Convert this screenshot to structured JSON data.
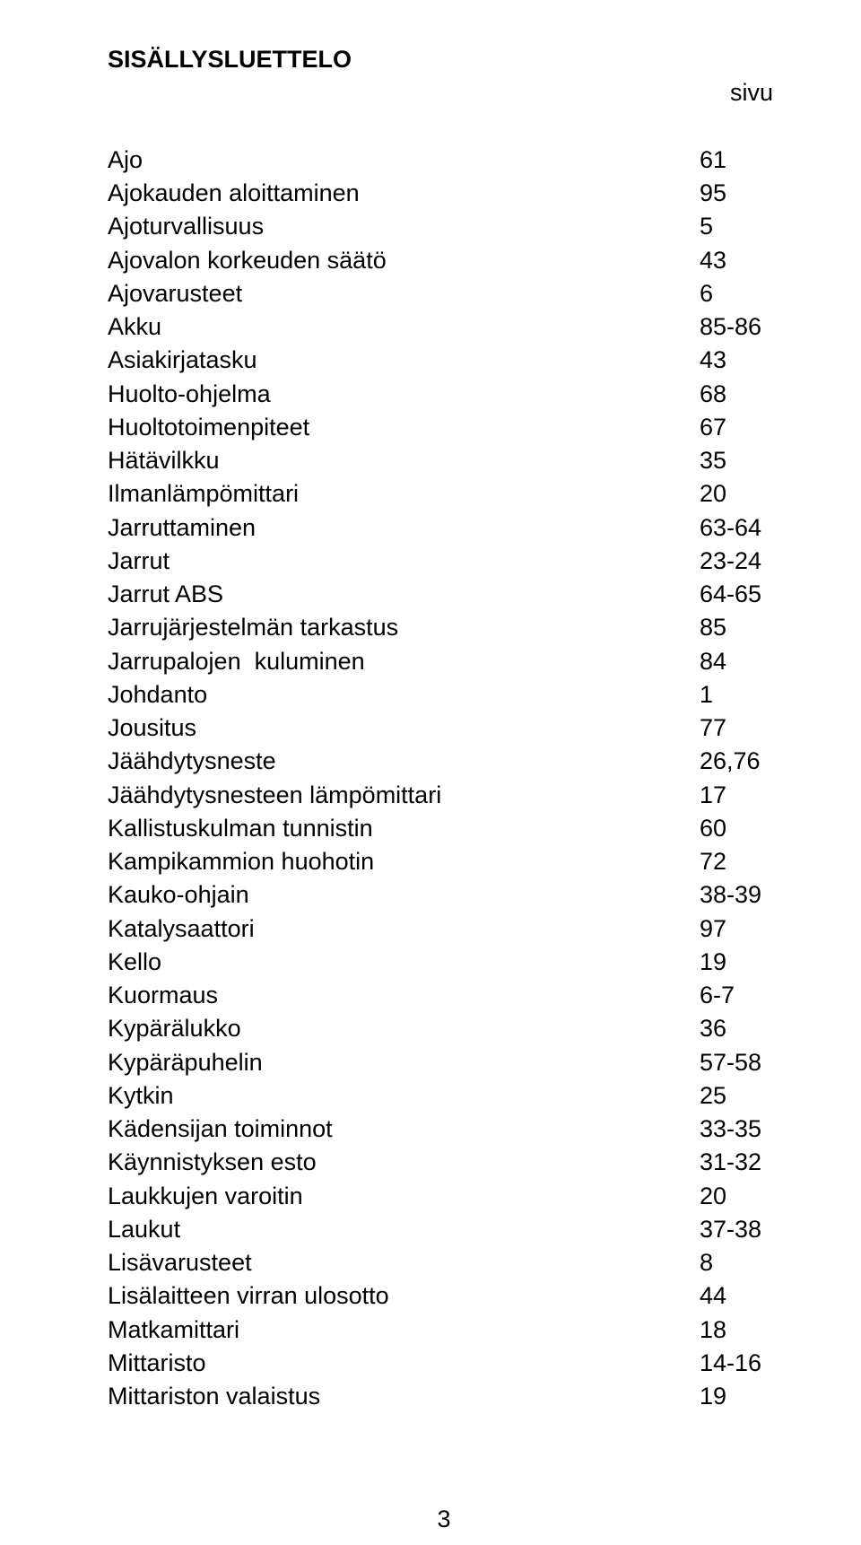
{
  "title": "SISÄLLYSLUETTELO",
  "page_label": "sivu",
  "colors": {
    "background": "#ffffff",
    "text": "#000000"
  },
  "typography": {
    "font_family": "Arial",
    "body_fontsize_pt": 20,
    "title_weight": "bold"
  },
  "entries": [
    {
      "label": "Ajo",
      "page": "61"
    },
    {
      "label": "Ajokauden aloittaminen",
      "page": "95"
    },
    {
      "label": "Ajoturvallisuus",
      "page": "5"
    },
    {
      "label": "Ajovalon korkeuden säätö",
      "page": "43"
    },
    {
      "label": "Ajovarusteet",
      "page": "6"
    },
    {
      "label": "Akku",
      "page": "85-86"
    },
    {
      "label": "Asiakirjatasku",
      "page": "43"
    },
    {
      "label": "Huolto-ohjelma",
      "page": "68"
    },
    {
      "label": "Huoltotoimenpiteet",
      "page": "67"
    },
    {
      "label": "Hätävilkku",
      "page": "35"
    },
    {
      "label": "Ilmanlämpömittari",
      "page": "20"
    },
    {
      "label": "Jarruttaminen",
      "page": "63-64"
    },
    {
      "label": "Jarrut",
      "page": "23-24"
    },
    {
      "label": "Jarrut ABS",
      "page": "64-65"
    },
    {
      "label": "Jarrujärjestelmän tarkastus",
      "page": "85"
    },
    {
      "label": "Jarrupalojen  kuluminen",
      "page": "84"
    },
    {
      "label": "Johdanto",
      "page": "1"
    },
    {
      "label": "Jousitus",
      "page": "77"
    },
    {
      "label": "Jäähdytysneste",
      "page": "26,76"
    },
    {
      "label": "Jäähdytysnesteen lämpömittari",
      "page": "17"
    },
    {
      "label": "Kallistuskulman tunnistin",
      "page": "60"
    },
    {
      "label": "Kampikammion huohotin",
      "page": "72"
    },
    {
      "label": "Kauko-ohjain",
      "page": "38-39"
    },
    {
      "label": "Katalysaattori",
      "page": "97"
    },
    {
      "label": "Kello",
      "page": "19"
    },
    {
      "label": "Kuormaus",
      "page": "6-7"
    },
    {
      "label": "Kypärälukko",
      "page": "36"
    },
    {
      "label": "Kypäräpuhelin",
      "page": "57-58"
    },
    {
      "label": "Kytkin",
      "page": "25"
    },
    {
      "label": "Kädensijan toiminnot",
      "page": "33-35"
    },
    {
      "label": "Käynnistyksen esto",
      "page": "31-32"
    },
    {
      "label": "Laukkujen varoitin",
      "page": "20"
    },
    {
      "label": "Laukut",
      "page": "37-38"
    },
    {
      "label": "Lisävarusteet",
      "page": "8"
    },
    {
      "label": "Lisälaitteen virran ulosotto",
      "page": "44"
    },
    {
      "label": "Matkamittari",
      "page": "18"
    },
    {
      "label": "Mittaristo",
      "page": "14-16"
    },
    {
      "label": "Mittariston valaistus",
      "page": "19"
    }
  ],
  "footer_page_number": "3"
}
